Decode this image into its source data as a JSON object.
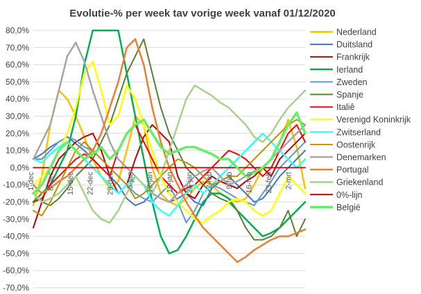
{
  "chart_data": {
    "type": "line",
    "title": "Evolutie-% per week tav vorige week vanaf 01/12/2020",
    "xlabel": "",
    "ylabel": "",
    "ylim": [
      -70,
      80
    ],
    "y_ticks": [
      "80,0%",
      "70,0%",
      "60,0%",
      "50,0%",
      "40,0%",
      "30,0%",
      "20,0%",
      "10,0%",
      "0,0%",
      "-10,0%",
      "-20,0%",
      "-30,0%",
      "-40,0%",
      "-50,0%",
      "-60,0%",
      "-70,0%"
    ],
    "x_tick_labels": [
      "1-dec",
      "8-dec",
      "15-dec",
      "22-dec",
      "29-dec",
      "5-jan",
      "12-jan",
      "19-jan",
      "26-jan",
      "2-feb",
      "9-feb",
      "16-feb",
      "23-feb",
      "2-mrt"
    ],
    "x_tick_dates": [
      "2020-12-01",
      "2020-12-08",
      "2020-12-15",
      "2020-12-22",
      "2020-12-29",
      "2021-01-05",
      "2021-01-12",
      "2021-01-19",
      "2021-01-26",
      "2021-02-02",
      "2021-02-09",
      "2021-02-16",
      "2021-02-23",
      "2021-03-02"
    ],
    "grid": true,
    "legend_position": "right",
    "x": [
      "2020-12-01",
      "2020-12-04",
      "2020-12-07",
      "2020-12-10",
      "2020-12-13",
      "2020-12-16",
      "2020-12-19",
      "2020-12-22",
      "2020-12-25",
      "2020-12-28",
      "2020-12-31",
      "2021-01-03",
      "2021-01-06",
      "2021-01-09",
      "2021-01-12",
      "2021-01-15",
      "2021-01-18",
      "2021-01-21",
      "2021-01-24",
      "2021-01-27",
      "2021-01-30",
      "2021-02-02",
      "2021-02-05",
      "2021-02-08",
      "2021-02-11",
      "2021-02-14",
      "2021-02-17",
      "2021-02-20",
      "2021-02-23",
      "2021-02-26",
      "2021-03-01",
      "2021-03-04",
      "2021-03-07"
    ],
    "series": [
      {
        "name": "Nederland",
        "color": "#FFC000",
        "width": 2.5,
        "values": [
          -22,
          -5,
          25,
          45,
          40,
          30,
          18,
          5,
          -5,
          -12,
          -8,
          10,
          30,
          25,
          0,
          -15,
          -20,
          -22,
          -18,
          -12,
          -8,
          -10,
          -15,
          -18,
          -20,
          -18,
          -10,
          0,
          5,
          15,
          28,
          12,
          -12
        ]
      },
      {
        "name": "Duitsland",
        "color": "#4472C4",
        "width": 2.0,
        "values": [
          5,
          8,
          12,
          15,
          18,
          14,
          10,
          5,
          0,
          -5,
          -10,
          -18,
          -22,
          -20,
          -15,
          -18,
          -20,
          -18,
          -15,
          -20,
          -22,
          -12,
          -8,
          -5,
          -10,
          -15,
          -20,
          -18,
          -12,
          -5,
          0,
          5,
          10
        ]
      },
      {
        "name": "Frankrijk",
        "color": "#C00000",
        "width": 2.0,
        "values": [
          -35,
          -20,
          -5,
          5,
          10,
          15,
          18,
          20,
          10,
          -5,
          -15,
          -10,
          5,
          18,
          25,
          20,
          15,
          -5,
          -15,
          -18,
          -10,
          -5,
          -8,
          -10,
          -12,
          -8,
          -5,
          0,
          -5,
          5,
          10,
          15,
          20
        ]
      },
      {
        "name": "Ierland",
        "color": "#00B050",
        "width": 2.5,
        "values": [
          -20,
          -15,
          -10,
          0,
          10,
          30,
          60,
          80,
          80,
          80,
          80,
          55,
          30,
          5,
          -20,
          -40,
          -50,
          -48,
          -40,
          -30,
          -20,
          -15,
          -15,
          -18,
          -25,
          -30,
          -35,
          -40,
          -38,
          -35,
          -30,
          -25,
          -20
        ]
      },
      {
        "name": "Zweden",
        "color": "#5B9BD5",
        "width": 2.0,
        "values": [
          5,
          5,
          10,
          15,
          18,
          16,
          12,
          10,
          5,
          0,
          -5,
          -10,
          -15,
          -18,
          -20,
          -15,
          -10,
          -20,
          -32,
          -25,
          -15,
          -10,
          -12,
          -15,
          -18,
          -20,
          -22,
          -15,
          -8,
          0,
          5,
          10,
          15
        ]
      },
      {
        "name": "Spanje",
        "color": "#548235",
        "width": 2.0,
        "values": [
          -15,
          -20,
          -22,
          -18,
          -12,
          -5,
          0,
          5,
          15,
          25,
          40,
          55,
          65,
          75,
          55,
          35,
          20,
          10,
          0,
          -5,
          -10,
          -15,
          -18,
          -20,
          -25,
          -35,
          -42,
          -42,
          -40,
          -35,
          -25,
          -40,
          -30
        ]
      },
      {
        "name": "Italiê",
        "color": "#FF0000",
        "width": 2.0,
        "values": [
          -20,
          -18,
          -10,
          -5,
          0,
          5,
          8,
          5,
          0,
          -5,
          10,
          20,
          25,
          15,
          5,
          -5,
          -10,
          -15,
          -12,
          -10,
          -5,
          0,
          5,
          10,
          8,
          5,
          0,
          -5,
          0,
          10,
          20,
          25,
          15
        ]
      },
      {
        "name": "Verenigd Koninkrijk",
        "color": "#FFFF00",
        "width": 2.5,
        "values": [
          -10,
          -5,
          0,
          10,
          20,
          35,
          55,
          62,
          45,
          25,
          30,
          48,
          40,
          25,
          10,
          -5,
          -15,
          -20,
          -25,
          -30,
          -32,
          -28,
          -25,
          -20,
          -18,
          -20,
          -25,
          -28,
          -25,
          -15,
          -5,
          -10,
          -15
        ]
      },
      {
        "name": "Zwitserland",
        "color": "#33FFFF",
        "width": 2.5,
        "values": [
          5,
          3,
          8,
          12,
          15,
          10,
          5,
          0,
          -5,
          -10,
          -15,
          -10,
          -5,
          -10,
          -20,
          -25,
          -28,
          -22,
          -15,
          -10,
          -15,
          -10,
          -5,
          0,
          5,
          10,
          15,
          20,
          15,
          10,
          5,
          0,
          5
        ]
      },
      {
        "name": "Oostenrijk",
        "color": "#BF9000",
        "width": 2.0,
        "values": [
          -25,
          -28,
          -20,
          -10,
          0,
          10,
          15,
          10,
          5,
          0,
          -5,
          -10,
          -18,
          -15,
          -10,
          -5,
          0,
          5,
          3,
          0,
          -5,
          -10,
          -8,
          -5,
          -5,
          0,
          5,
          10,
          15,
          20,
          25,
          28,
          25
        ]
      },
      {
        "name": "Denemarken",
        "color": "#A5A5A5",
        "width": 2.5,
        "values": [
          5,
          15,
          25,
          45,
          65,
          73,
          62,
          45,
          30,
          15,
          5,
          0,
          -5,
          -10,
          -15,
          -18,
          -20,
          -15,
          -10,
          -5,
          -2,
          0,
          -5,
          -10,
          -8,
          -5,
          -2,
          0,
          5,
          10,
          15,
          20,
          25
        ]
      },
      {
        "name": "Portugal",
        "color": "#ED7D31",
        "width": 2.5,
        "values": [
          -10,
          -15,
          -12,
          -8,
          -5,
          0,
          5,
          10,
          20,
          35,
          50,
          70,
          75,
          60,
          35,
          15,
          0,
          -10,
          -20,
          -28,
          -35,
          -40,
          -45,
          -50,
          -55,
          -52,
          -48,
          -45,
          -42,
          -40,
          -40,
          -38,
          -36
        ]
      },
      {
        "name": "Griekenland",
        "color": "#A9D18E",
        "width": 2.5,
        "values": [
          -15,
          -20,
          -18,
          -15,
          -10,
          -5,
          -15,
          -25,
          -30,
          -32,
          -25,
          -15,
          -5,
          -10,
          -15,
          -5,
          10,
          25,
          40,
          48,
          45,
          42,
          38,
          35,
          30,
          25,
          18,
          15,
          20,
          28,
          35,
          40,
          45
        ]
      },
      {
        "name": "0%-lijn",
        "color": "#C00000",
        "width": 1.8,
        "values": [
          0,
          0,
          0,
          0,
          0,
          0,
          0,
          0,
          0,
          0,
          0,
          0,
          0,
          0,
          0,
          0,
          0,
          0,
          0,
          0,
          0,
          0,
          0,
          0,
          0,
          0,
          0,
          0,
          0,
          0,
          0,
          0,
          0
        ]
      },
      {
        "name": "België",
        "color": "#66EE66",
        "width": 3.5,
        "values": [
          -15,
          -10,
          0,
          10,
          15,
          10,
          5,
          8,
          12,
          5,
          10,
          20,
          25,
          28,
          20,
          12,
          8,
          10,
          12,
          12,
          10,
          8,
          5,
          5,
          0,
          -5,
          -3,
          0,
          5,
          15,
          25,
          32,
          20
        ]
      }
    ]
  }
}
